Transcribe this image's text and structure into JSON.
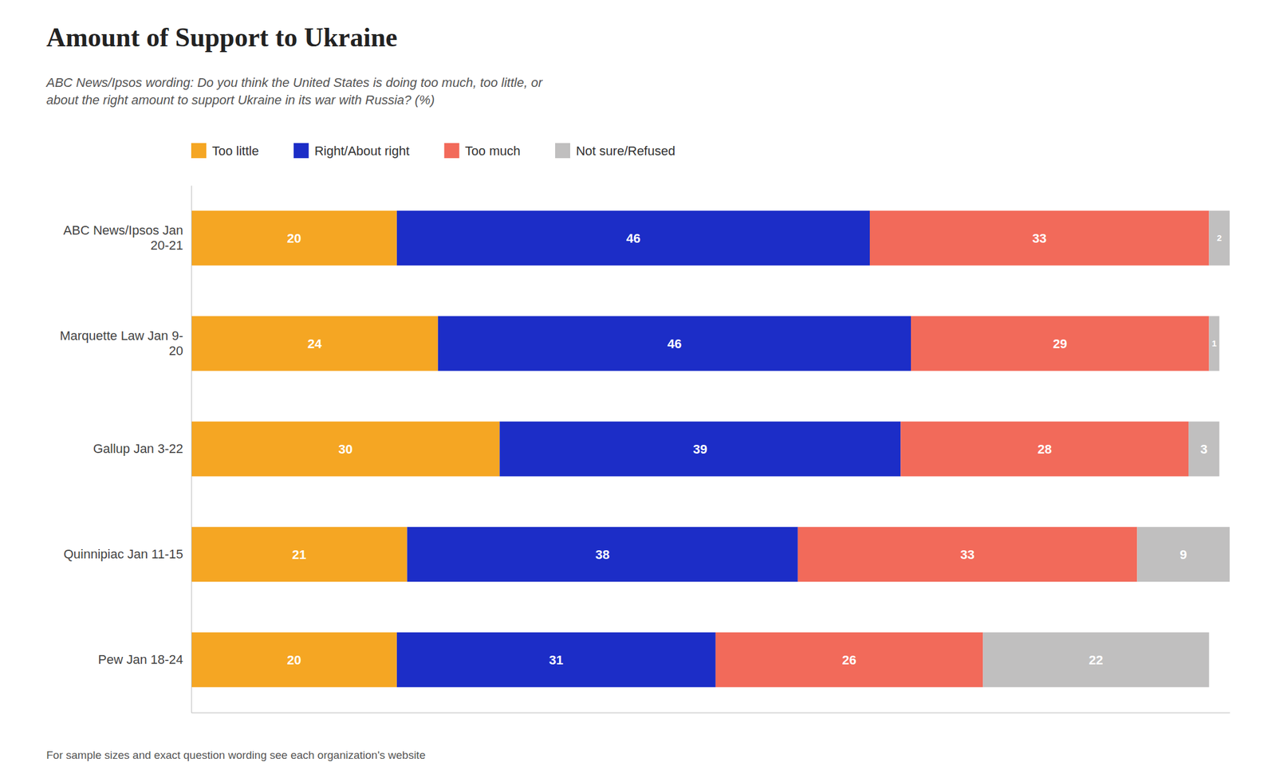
{
  "chart_data": {
    "type": "bar",
    "orientation": "horizontal",
    "stacked": true,
    "data_labels": true,
    "legend": "top",
    "tick_labels": "y",
    "title": "Amount of Support to Ukraine",
    "subtitle": "ABC News/Ipsos wording: Do you think the United States is doing too much, too little, or\nabout the right amount to support Ukraine in its war with Russia? (%)",
    "footnote": "For sample sizes and exact question wording see each organization's website",
    "categories": [
      "ABC News/Ipsos Jan\n20-21",
      "Marquette Law Jan 9-\n20",
      "Gallup Jan 3-22",
      "Quinnipiac Jan 11-15",
      "Pew Jan 18-24"
    ],
    "series": [
      {
        "name": "Too little",
        "color": "#F5A623",
        "values": [
          20,
          24,
          30,
          21,
          20
        ]
      },
      {
        "name": "Right/About right",
        "color": "#1C2DC7",
        "values": [
          46,
          46,
          39,
          38,
          31
        ]
      },
      {
        "name": "Too much",
        "color": "#F26A5A",
        "values": [
          33,
          29,
          28,
          33,
          26
        ]
      },
      {
        "name": "Not sure/Refused",
        "color": "#C0BFBF",
        "values": [
          2,
          1,
          3,
          9,
          22
        ]
      }
    ],
    "xlim": [
      0,
      101
    ]
  }
}
